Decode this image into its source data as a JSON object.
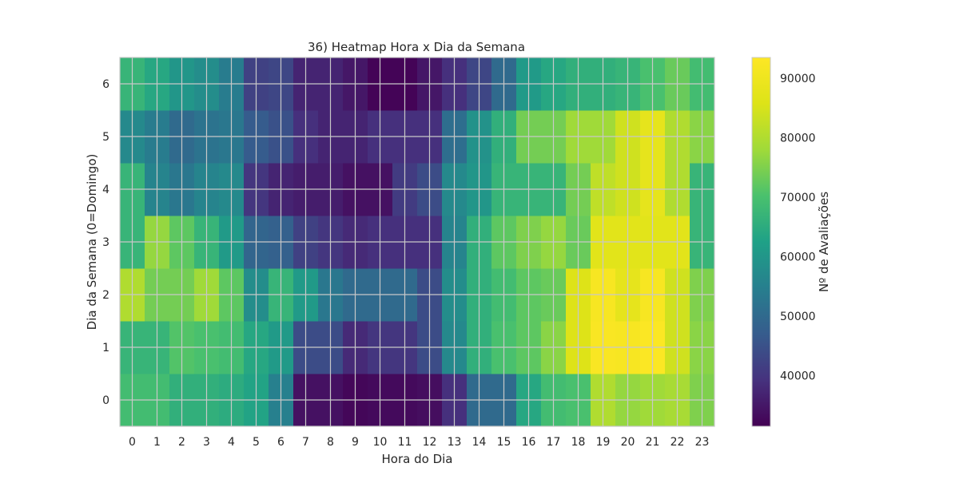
{
  "chart_data": {
    "type": "heatmap",
    "title": "36) Heatmap Hora x Dia da Semana",
    "xlabel": "Hora do Dia",
    "ylabel": "Dia da Semana (0=Domingo)",
    "x_categories": [
      "0",
      "1",
      "2",
      "3",
      "4",
      "5",
      "6",
      "7",
      "8",
      "9",
      "10",
      "11",
      "12",
      "13",
      "14",
      "15",
      "16",
      "17",
      "18",
      "19",
      "20",
      "21",
      "22",
      "23"
    ],
    "y_categories": [
      "0",
      "1",
      "2",
      "3",
      "4",
      "5",
      "6"
    ],
    "colorbar": {
      "label": "Nº de Avaliações",
      "min": 31500,
      "max": 93500,
      "ticks": [
        "40000",
        "50000",
        "60000",
        "70000",
        "80000",
        "90000"
      ],
      "tick_values": [
        40000,
        50000,
        60000,
        70000,
        80000,
        90000
      ],
      "colormap": "viridis"
    },
    "grid": true,
    "values": [
      [
        69000,
        69000,
        66000,
        66000,
        65000,
        63000,
        55000,
        34000,
        34000,
        32500,
        33000,
        33000,
        33500,
        39000,
        50000,
        50000,
        64000,
        69000,
        70000,
        80000,
        77000,
        78000,
        79000,
        75000
      ],
      [
        67000,
        67000,
        71000,
        70000,
        69000,
        64000,
        61000,
        44000,
        44000,
        38000,
        40000,
        40000,
        44000,
        57000,
        66000,
        70000,
        72000,
        76000,
        86000,
        92500,
        92000,
        93000,
        84000,
        76000
      ],
      [
        80000,
        74000,
        74000,
        78000,
        72000,
        58000,
        67000,
        61000,
        53000,
        50000,
        50000,
        50000,
        44000,
        58000,
        66000,
        69000,
        72000,
        73000,
        86000,
        92000,
        88000,
        92000,
        84000,
        75000
      ],
      [
        67000,
        77000,
        72000,
        67000,
        61000,
        49000,
        48000,
        42000,
        40000,
        38000,
        39000,
        39000,
        39000,
        56000,
        66000,
        72000,
        75000,
        77000,
        73000,
        87000,
        87000,
        87000,
        87000,
        67000
      ],
      [
        67000,
        56000,
        53000,
        56000,
        57000,
        40000,
        37000,
        36000,
        36000,
        34000,
        34000,
        41000,
        44000,
        57000,
        60000,
        67000,
        67000,
        67000,
        74000,
        82000,
        84000,
        88000,
        80000,
        67000
      ],
      [
        57000,
        54000,
        50000,
        52000,
        53000,
        47000,
        45000,
        39000,
        37000,
        37000,
        39000,
        39000,
        39000,
        51000,
        59000,
        66000,
        74000,
        74000,
        78000,
        78000,
        84000,
        88000,
        80000,
        76000
      ],
      [
        67000,
        64000,
        60000,
        58000,
        54000,
        42000,
        43000,
        37000,
        37000,
        35000,
        32000,
        32000,
        35000,
        39000,
        43000,
        50000,
        61000,
        64000,
        66000,
        66000,
        67000,
        70000,
        73000,
        69000
      ]
    ]
  }
}
